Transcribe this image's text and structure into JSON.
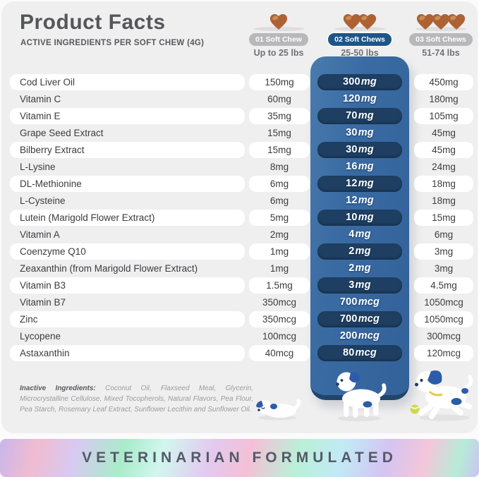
{
  "header": {
    "title": "Product Facts",
    "subtitle": "ACTIVE INGREDIENTS PER SOFT CHEW (4G)",
    "dose_columns": [
      {
        "badge": "01 Soft Chew",
        "weight": "Up to 25 lbs",
        "chew_count": 1,
        "highlighted": false
      },
      {
        "badge": "02 Soft Chews",
        "weight": "25-50 lbs",
        "chew_count": 2,
        "highlighted": true
      },
      {
        "badge": "03 Soft Chews",
        "weight": "51-74 lbs",
        "chew_count": 3,
        "highlighted": false
      }
    ]
  },
  "table": {
    "rows": [
      {
        "name": "Cod Liver Oil",
        "dose1": "150mg",
        "dose2": "300mg",
        "dose3": "450mg"
      },
      {
        "name": "Vitamin C",
        "dose1": "60mg",
        "dose2": "120mg",
        "dose3": "180mg"
      },
      {
        "name": "Vitamin E",
        "dose1": "35mg",
        "dose2": "70mg",
        "dose3": "105mg"
      },
      {
        "name": "Grape Seed Extract",
        "dose1": "15mg",
        "dose2": "30mg",
        "dose3": "45mg"
      },
      {
        "name": "Bilberry Extract",
        "dose1": "15mg",
        "dose2": "30mg",
        "dose3": "45mg"
      },
      {
        "name": "L-Lysine",
        "dose1": "8mg",
        "dose2": "16mg",
        "dose3": "24mg"
      },
      {
        "name": "DL-Methionine",
        "dose1": "6mg",
        "dose2": "12mg",
        "dose3": "18mg"
      },
      {
        "name": "L-Cysteine",
        "dose1": "6mg",
        "dose2": "12mg",
        "dose3": "18mg"
      },
      {
        "name": "Lutein (Marigold Flower Extract)",
        "dose1": "5mg",
        "dose2": "10mg",
        "dose3": "15mg"
      },
      {
        "name": "Vitamin A",
        "dose1": "2mg",
        "dose2": "4mg",
        "dose3": "6mg"
      },
      {
        "name": "Coenzyme Q10",
        "dose1": "1mg",
        "dose2": "2mg",
        "dose3": "3mg"
      },
      {
        "name": "Zeaxanthin (from Marigold Flower Extract)",
        "dose1": "1mg",
        "dose2": "2mg",
        "dose3": "3mg"
      },
      {
        "name": "Vitamin B3",
        "dose1": "1.5mg",
        "dose2": "3mg",
        "dose3": "4.5mg"
      },
      {
        "name": "Vitamin B7",
        "dose1": "350mcg",
        "dose2": "700mcg",
        "dose3": "1050mcg"
      },
      {
        "name": "Zinc",
        "dose1": "350mcg",
        "dose2": "700mcg",
        "dose3": "1050mcg"
      },
      {
        "name": "Lycopene",
        "dose1": "100mcg",
        "dose2": "200mcg",
        "dose3": "300mcg"
      },
      {
        "name": "Astaxanthin",
        "dose1": "40mcg",
        "dose2": "80mcg",
        "dose3": "120mcg"
      }
    ]
  },
  "inactive": {
    "label": "Inactive Ingredients:",
    "text": "Coconut Oil, Flaxseed Meal, Glycerin, Microcrystalline Cellulose, Mixed Tocopherols, Natural Flavors, Pea Flour, Pea Starch, Rosemary Leaf Extract, Sunflower Lecithin and Sunflower Oil."
  },
  "footer": {
    "banner": "VETERINARIAN FORMULATED"
  },
  "colors": {
    "card_bg": "#f0eff0",
    "highlight_column_blue": "#3a6ba3",
    "highlight_pill_navy": "#1e3f62",
    "badge_gray": "#b8b8ba",
    "badge_blue": "#1d5587",
    "chew_brown": "#ad6234",
    "banner_text": "#545a68"
  }
}
